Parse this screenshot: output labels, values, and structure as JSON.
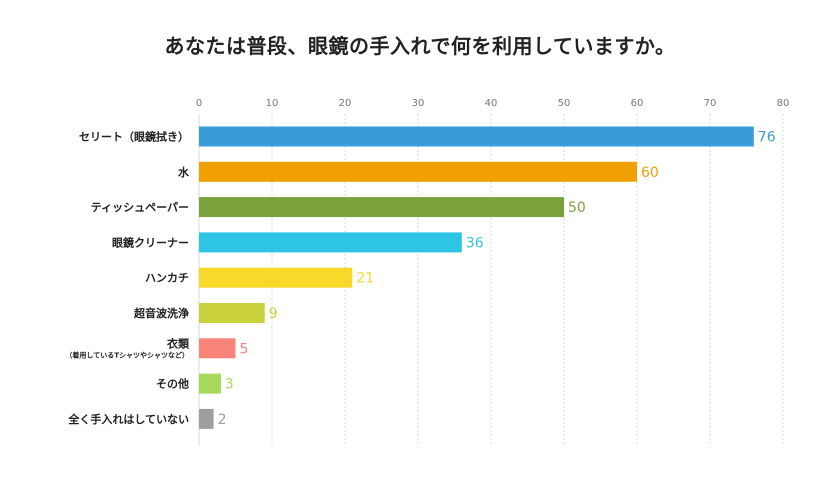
{
  "chart_data": {
    "type": "bar",
    "orientation": "horizontal",
    "title": "あなたは普段、眼鏡の手入れで何を利用していますか。",
    "xlim": [
      0,
      80
    ],
    "xticks": [
      0,
      10,
      20,
      30,
      40,
      50,
      60,
      70,
      80
    ],
    "grid": true,
    "categories": [
      {
        "label": "セリート（眼鏡拭き）",
        "sub": ""
      },
      {
        "label": "水",
        "sub": ""
      },
      {
        "label": "ティッシュペーパー",
        "sub": ""
      },
      {
        "label": "眼鏡クリーナー",
        "sub": ""
      },
      {
        "label": "ハンカチ",
        "sub": ""
      },
      {
        "label": "超音波洗浄",
        "sub": ""
      },
      {
        "label": "衣類",
        "sub": "（着用しているTシャツやシャツなど）"
      },
      {
        "label": "その他",
        "sub": ""
      },
      {
        "label": "全く手入れはしていない",
        "sub": ""
      }
    ],
    "values": [
      76,
      60,
      50,
      36,
      21,
      9,
      5,
      3,
      2
    ],
    "colors": [
      "#3a9bd9",
      "#f0a000",
      "#7aa23c",
      "#2ec4e4",
      "#f8d92a",
      "#c8d13b",
      "#f8847a",
      "#a6d85c",
      "#9e9e9e"
    ]
  }
}
